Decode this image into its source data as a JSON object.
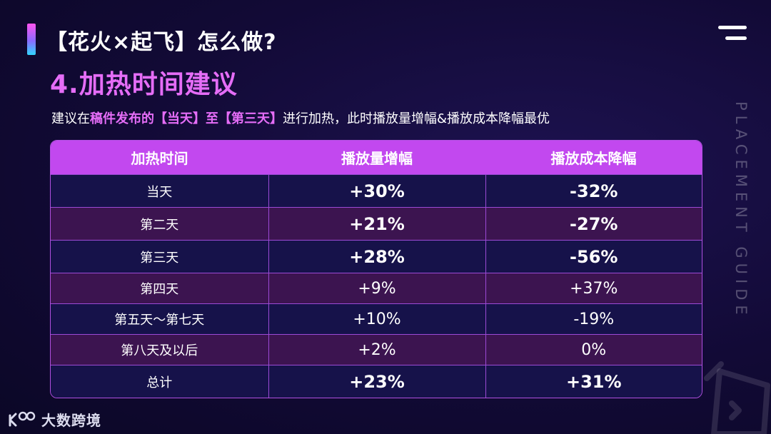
{
  "header": {
    "title": "【花火×起飞】怎么做?",
    "section_title": "4.加热时间建议",
    "subtitle": {
      "part1": "建议在",
      "part2": "稿件发布的【当天】至【第三天】",
      "part3": "进行加热，此时播放量增幅&播放成本降幅最优"
    }
  },
  "side_text": "PLACEMENT GUIDE",
  "table": {
    "headers": [
      "加热时间",
      "播放量增幅",
      "播放成本降幅"
    ],
    "rows": [
      {
        "time": "当天",
        "views": "+30%",
        "cost": "-32%",
        "bold": true
      },
      {
        "time": "第二天",
        "views": "+21%",
        "cost": "-27%",
        "bold": true
      },
      {
        "time": "第三天",
        "views": "+28%",
        "cost": "-56%",
        "bold": true
      },
      {
        "time": "第四天",
        "views": "+9%",
        "cost": "+37%",
        "bold": false
      },
      {
        "time": "第五天～第七天",
        "views": "+10%",
        "cost": "-19%",
        "bold": false
      },
      {
        "time": "第八天及以后",
        "views": "+2%",
        "cost": "0%",
        "bold": false
      },
      {
        "time": "总计",
        "views": "+23%",
        "cost": "+31%",
        "bold": true
      }
    ]
  },
  "logo": {
    "text": "大数跨境"
  },
  "colors": {
    "accent": "#e56df7",
    "header_bg": "#c248ef",
    "row_dark": "#16124a",
    "row_purple": "#3c1450"
  }
}
